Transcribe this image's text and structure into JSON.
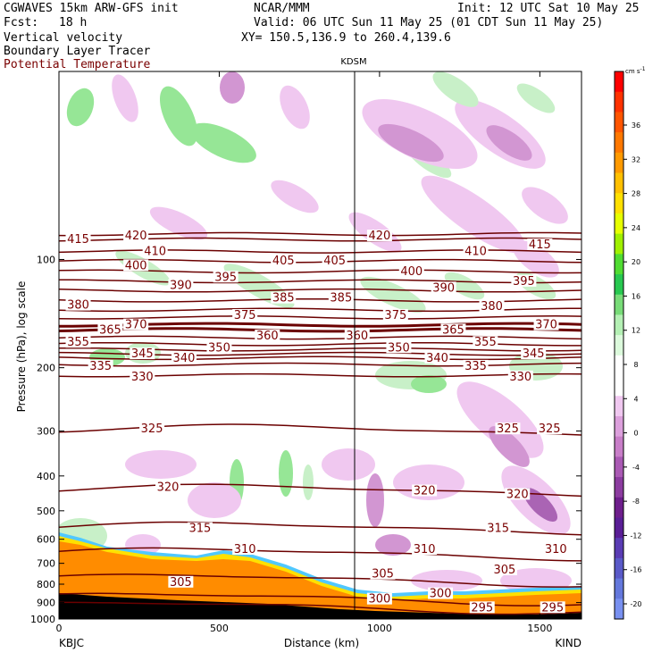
{
  "header": {
    "model": "CGWAVES 15km ARW-GFS init",
    "forecast_label": "Fcst:",
    "forecast_hours": "18 h",
    "org": "NCAR/MMM",
    "init": "Init: 12 UTC Sat 10 May 25",
    "valid": "Valid: 06 UTC Sun 11 May 25 (01 CDT Sun 11 May 25)",
    "xy": "XY= 150.5,136.9 to 260.4,139.6",
    "field1": "Vertical velocity",
    "field2": "Boundary Layer Tracer",
    "field3": "Potential Temperature"
  },
  "colors": {
    "theta_contour": "#6b0000",
    "terrain": "#ff8c00",
    "tracer": "#ff8c00",
    "up_light": "#c8f0c8",
    "up_mid": "#96e696",
    "down_light": "#f0c8f0",
    "down_mid": "#d296d2",
    "down_dark": "#aa64b4"
  },
  "chart_data": {
    "type": "heatmap",
    "title": "KDSM",
    "xlabel": "Distance (km)",
    "ylabel": "Pressure (hPa), log scale",
    "x_ticks": [
      0,
      500,
      1000,
      1500
    ],
    "xlim": [
      0,
      1630
    ],
    "y_ticks": [
      100,
      200,
      300,
      400,
      500,
      600,
      700,
      800,
      900,
      1000
    ],
    "ylim": [
      1000,
      30
    ],
    "y_scale": "log",
    "left_station": "KBJC",
    "right_station": "KIND",
    "marker_station": "KDSM",
    "marker_x_km": 930,
    "colorbar": {
      "units": "cm s",
      "units_exp": "-1",
      "ticks": [
        36,
        32,
        28,
        24,
        20,
        16,
        12,
        8,
        4,
        0,
        -4,
        -8,
        -12,
        -16,
        -20
      ],
      "colors": [
        "#ff0000",
        "#ff3200",
        "#ff5500",
        "#ff7800",
        "#ff9a00",
        "#ffc000",
        "#ffe000",
        "#e6ff00",
        "#a0f000",
        "#50dc32",
        "#28c850",
        "#78dc78",
        "#b4f0b4",
        "#dcfadc",
        "#ffffff",
        "#ffffff",
        "#f0c8f0",
        "#dca0dc",
        "#c87ec8",
        "#aa5ab4",
        "#8c3ca0",
        "#6e1e8c",
        "#5a1e96",
        "#5a3cb4",
        "#5a5ac8",
        "#6478dc",
        "#7890f0"
      ]
    },
    "theta_contours": [
      {
        "value": 420,
        "p": 85
      },
      {
        "value": 415,
        "p": 88
      },
      {
        "value": 410,
        "p": 95
      },
      {
        "value": 405,
        "p": 101
      },
      {
        "value": 400,
        "p": 108
      },
      {
        "value": 395,
        "p": 115
      },
      {
        "value": 390,
        "p": 122
      },
      {
        "value": 385,
        "p": 130
      },
      {
        "value": 380,
        "p": 138
      },
      {
        "value": 375,
        "p": 145
      },
      {
        "value": 370,
        "p": 152
      },
      {
        "value": 365,
        "p": 157
      },
      {
        "value": 360,
        "p": 165
      },
      {
        "value": 355,
        "p": 172
      },
      {
        "value": 350,
        "p": 178
      },
      {
        "value": 345,
        "p": 183
      },
      {
        "value": 340,
        "p": 188
      },
      {
        "value": 335,
        "p": 196
      },
      {
        "value": 330,
        "p": 210
      },
      {
        "value": 325,
        "p": 300
      },
      {
        "value": 320,
        "p": 440
      },
      {
        "value": 315,
        "p": 560
      },
      {
        "value": 310,
        "p": 660
      },
      {
        "value": 305,
        "p": 780
      },
      {
        "value": 300,
        "p": 880
      },
      {
        "value": 295,
        "p": 930
      }
    ],
    "theta_labels": [
      {
        "text": "420",
        "x": 240,
        "p": 86
      },
      {
        "text": "420",
        "x": 1000,
        "p": 86
      },
      {
        "text": "415",
        "x": 60,
        "p": 88
      },
      {
        "text": "415",
        "x": 1500,
        "p": 91
      },
      {
        "text": "410",
        "x": 300,
        "p": 95
      },
      {
        "text": "410",
        "x": 1300,
        "p": 95
      },
      {
        "text": "405",
        "x": 700,
        "p": 101
      },
      {
        "text": "405",
        "x": 860,
        "p": 101
      },
      {
        "text": "400",
        "x": 240,
        "p": 104
      },
      {
        "text": "400",
        "x": 1100,
        "p": 108
      },
      {
        "text": "395",
        "x": 520,
        "p": 112
      },
      {
        "text": "395",
        "x": 1450,
        "p": 115
      },
      {
        "text": "390",
        "x": 380,
        "p": 118
      },
      {
        "text": "390",
        "x": 1200,
        "p": 120
      },
      {
        "text": "385",
        "x": 700,
        "p": 128
      },
      {
        "text": "385",
        "x": 880,
        "p": 128
      },
      {
        "text": "380",
        "x": 60,
        "p": 134
      },
      {
        "text": "380",
        "x": 1350,
        "p": 135
      },
      {
        "text": "375",
        "x": 580,
        "p": 143
      },
      {
        "text": "375",
        "x": 1050,
        "p": 143
      },
      {
        "text": "370",
        "x": 240,
        "p": 152
      },
      {
        "text": "370",
        "x": 1520,
        "p": 152
      },
      {
        "text": "365",
        "x": 160,
        "p": 157
      },
      {
        "text": "365",
        "x": 1230,
        "p": 157
      },
      {
        "text": "360",
        "x": 650,
        "p": 163
      },
      {
        "text": "360",
        "x": 930,
        "p": 163
      },
      {
        "text": "355",
        "x": 60,
        "p": 170
      },
      {
        "text": "355",
        "x": 1330,
        "p": 170
      },
      {
        "text": "350",
        "x": 500,
        "p": 176
      },
      {
        "text": "350",
        "x": 1060,
        "p": 176
      },
      {
        "text": "345",
        "x": 260,
        "p": 183
      },
      {
        "text": "345",
        "x": 1480,
        "p": 183
      },
      {
        "text": "340",
        "x": 390,
        "p": 188
      },
      {
        "text": "340",
        "x": 1180,
        "p": 188
      },
      {
        "text": "335",
        "x": 130,
        "p": 198
      },
      {
        "text": "335",
        "x": 1300,
        "p": 198
      },
      {
        "text": "330",
        "x": 260,
        "p": 212
      },
      {
        "text": "330",
        "x": 1440,
        "p": 212
      },
      {
        "text": "325",
        "x": 290,
        "p": 296
      },
      {
        "text": "325",
        "x": 1400,
        "p": 296
      },
      {
        "text": "325",
        "x": 1530,
        "p": 296
      },
      {
        "text": "320",
        "x": 340,
        "p": 430
      },
      {
        "text": "320",
        "x": 1140,
        "p": 440
      },
      {
        "text": "320",
        "x": 1430,
        "p": 450
      },
      {
        "text": "315",
        "x": 440,
        "p": 560
      },
      {
        "text": "315",
        "x": 1370,
        "p": 560
      },
      {
        "text": "310",
        "x": 580,
        "p": 640
      },
      {
        "text": "310",
        "x": 1140,
        "p": 640
      },
      {
        "text": "310",
        "x": 1550,
        "p": 640
      },
      {
        "text": "305",
        "x": 380,
        "p": 790
      },
      {
        "text": "305",
        "x": 1010,
        "p": 750
      },
      {
        "text": "305",
        "x": 1390,
        "p": 730
      },
      {
        "text": "300",
        "x": 1000,
        "p": 880
      },
      {
        "text": "300",
        "x": 1190,
        "p": 850
      },
      {
        "text": "295",
        "x": 1320,
        "p": 930
      },
      {
        "text": "295",
        "x": 1540,
        "p": 930
      }
    ]
  }
}
